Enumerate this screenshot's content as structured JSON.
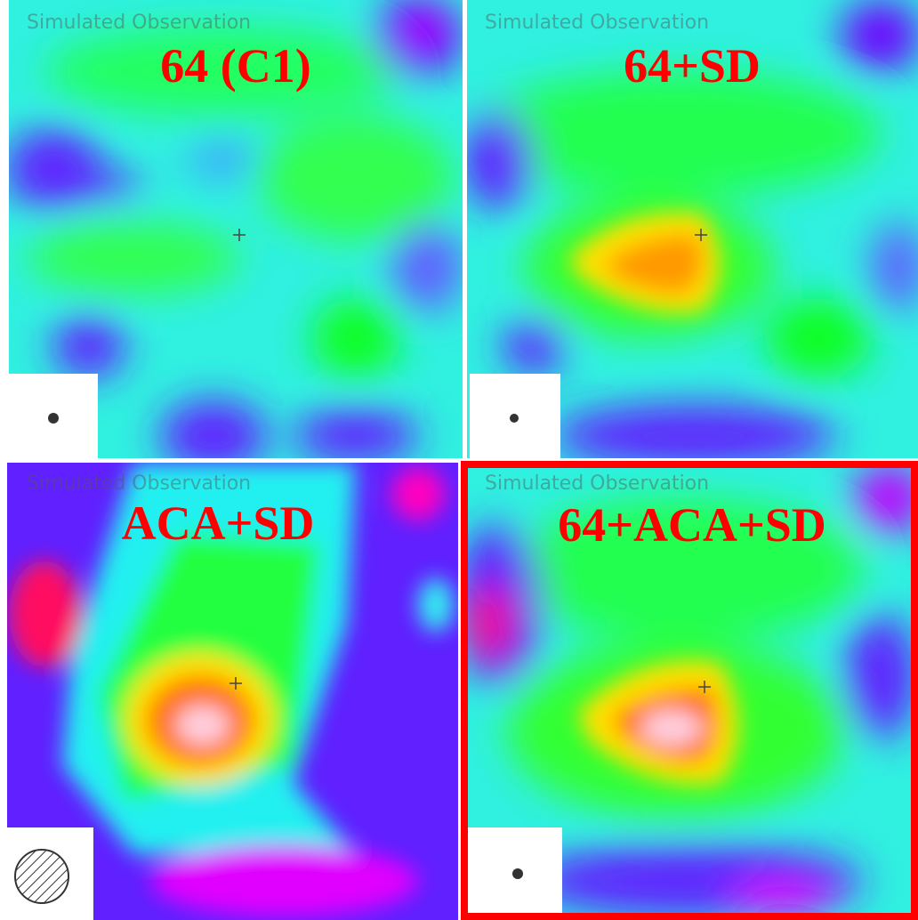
{
  "panels": [
    {
      "caption": "Simulated Observation",
      "label": "64 (C1)"
    },
    {
      "caption": "Simulated Observation",
      "label": "64+SD"
    },
    {
      "caption": "Simulated Observation",
      "label": "ACA+SD"
    },
    {
      "caption": "Simulated Observation",
      "label": "64+ACA+SD"
    }
  ]
}
